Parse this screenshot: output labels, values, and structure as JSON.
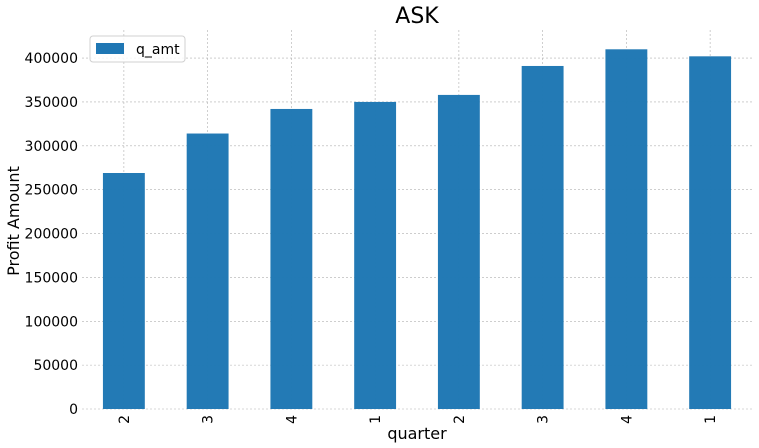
{
  "chart_data": {
    "type": "bar",
    "title": "ASK",
    "xlabel": "quarter",
    "ylabel": "Profit Amount",
    "categories": [
      "2",
      "3",
      "4",
      "1",
      "2",
      "3",
      "4",
      "1"
    ],
    "series": [
      {
        "name": "q_amt",
        "values": [
          269000,
          314000,
          342000,
          350000,
          358000,
          391000,
          410000,
          402000
        ]
      }
    ],
    "ylim": [
      0,
      432000
    ],
    "yticks": [
      0,
      50000,
      100000,
      150000,
      200000,
      250000,
      300000,
      350000,
      400000
    ],
    "grid": true,
    "legend_position": "top-left",
    "colors": {
      "bar": "#1f77b4"
    }
  }
}
